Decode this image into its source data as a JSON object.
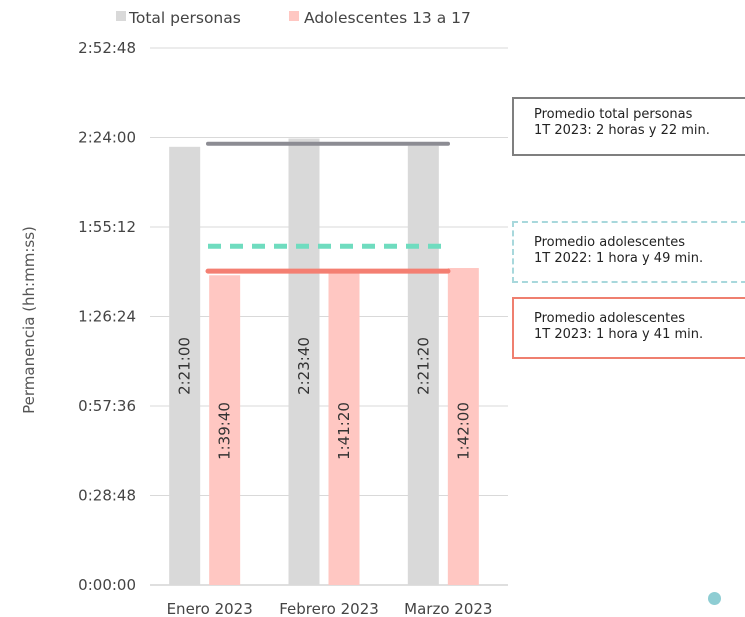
{
  "chart_data": {
    "type": "bar",
    "categories": [
      "Enero 2023",
      "Febrero 2023",
      "Marzo 2023"
    ],
    "series": [
      {
        "name": "Total personas",
        "values_seconds": [
          8460,
          8620,
          8480
        ],
        "labels": [
          "2:21:00",
          "2:23:40",
          "2:21:20"
        ],
        "color": "#d9d9d9"
      },
      {
        "name": "Adolescentes 13 a 17",
        "values_seconds": [
          5980,
          6080,
          6120
        ],
        "labels": [
          "1:39:40",
          "1:41:20",
          "1:42:00"
        ],
        "color": "#ffc7c2"
      }
    ],
    "ylabel": "Permanencia (hh:mm:ss)",
    "ylim_seconds": [
      0,
      10368
    ],
    "yticks": [
      "0:00:00",
      "0:28:48",
      "0:57:36",
      "1:26:24",
      "1:55:12",
      "2:24:00",
      "2:52:48"
    ],
    "ytick_seconds": [
      0,
      1728,
      3456,
      5184,
      6912,
      8640,
      10368
    ],
    "grid": true,
    "legend_position": "top",
    "reference_lines": [
      {
        "id": "total23",
        "value_seconds": 8520,
        "style": "solid",
        "color": "#8c8c93"
      },
      {
        "id": "adol22",
        "value_seconds": 6540,
        "style": "dashed",
        "color": "#6fdcbf"
      },
      {
        "id": "adol23",
        "value_seconds": 6060,
        "style": "solid",
        "color": "#f47f72"
      }
    ]
  },
  "annotations": {
    "total": {
      "line1": "Promedio total personas",
      "line2": "1T 2023: 2 horas y 22 min."
    },
    "adol22": {
      "line1": "Promedio adolescentes",
      "line2": "1T 2022: 1 hora y 49 min."
    },
    "adol23": {
      "line1": "Promedio adolescentes",
      "line2": "1T 2023: 1 hora y 41 min."
    }
  }
}
